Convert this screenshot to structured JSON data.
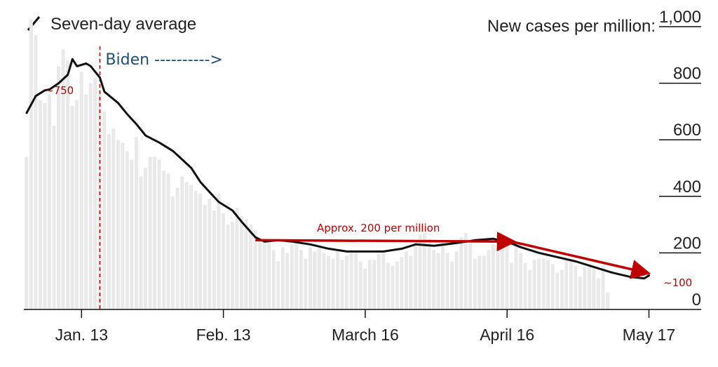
{
  "chart_data": {
    "type": "bar",
    "title": "",
    "legend_label": "Seven-day average",
    "ylabel": "New cases per million:",
    "ylim": [
      0,
      1000
    ],
    "y_ticks": [
      {
        "value": 1000,
        "label": "1,000"
      },
      {
        "value": 800,
        "label": "800"
      },
      {
        "value": 600,
        "label": "600"
      },
      {
        "value": 400,
        "label": "400"
      },
      {
        "value": 200,
        "label": "200"
      },
      {
        "value": 0,
        "label": "0"
      }
    ],
    "x_ticks": [
      {
        "day": 0,
        "label": "Jan. 13"
      },
      {
        "day": 31,
        "label": "Feb. 13"
      },
      {
        "day": 62,
        "label": "March 16"
      },
      {
        "day": 93,
        "label": "April 16"
      },
      {
        "day": 124,
        "label": "May 17"
      }
    ],
    "x_start_day": -12,
    "x_end_day": 125,
    "daily_bars": [
      540,
      1040,
      970,
      740,
      730,
      760,
      650,
      860,
      920,
      880,
      720,
      740,
      840,
      760,
      800,
      820,
      760,
      700,
      620,
      640,
      600,
      590,
      560,
      530,
      610,
      470,
      500,
      540,
      540,
      530,
      490,
      480,
      400,
      430,
      470,
      450,
      440,
      420,
      410,
      370,
      390,
      350,
      410,
      340,
      300,
      310,
      360,
      330,
      320,
      300,
      280,
      250,
      240,
      240,
      210,
      170,
      220,
      200,
      230,
      240,
      210,
      180,
      220,
      205,
      220,
      200,
      190,
      180,
      210,
      175,
      190,
      200,
      200,
      170,
      145,
      175,
      175,
      195,
      200,
      165,
      155,
      170,
      185,
      205,
      190,
      245,
      265,
      270,
      250,
      210,
      200,
      235,
      200,
      170,
      205,
      255,
      270,
      235,
      180,
      190,
      190,
      210,
      230,
      220,
      240,
      230,
      165,
      230,
      200,
      165,
      140,
      175,
      180,
      180,
      175,
      160,
      130,
      140,
      180,
      175,
      155,
      115,
      150,
      150,
      145,
      110,
      155,
      60
    ],
    "seven_day_average": [
      {
        "day": -12,
        "value": 695
      },
      {
        "day": -10,
        "value": 755
      },
      {
        "day": -8,
        "value": 775
      },
      {
        "day": -7,
        "value": 778
      },
      {
        "day": -5,
        "value": 800
      },
      {
        "day": -3,
        "value": 830
      },
      {
        "day": -2,
        "value": 885
      },
      {
        "day": -1,
        "value": 860
      },
      {
        "day": 1,
        "value": 870
      },
      {
        "day": 2,
        "value": 860
      },
      {
        "day": 4,
        "value": 820
      },
      {
        "day": 5,
        "value": 770
      },
      {
        "day": 8,
        "value": 730
      },
      {
        "day": 10,
        "value": 690
      },
      {
        "day": 12,
        "value": 655
      },
      {
        "day": 14,
        "value": 615
      },
      {
        "day": 17,
        "value": 590
      },
      {
        "day": 20,
        "value": 560
      },
      {
        "day": 22,
        "value": 530
      },
      {
        "day": 24,
        "value": 500
      },
      {
        "day": 26,
        "value": 450
      },
      {
        "day": 28,
        "value": 415
      },
      {
        "day": 30,
        "value": 380
      },
      {
        "day": 33,
        "value": 350
      },
      {
        "day": 35,
        "value": 310
      },
      {
        "day": 38,
        "value": 255
      },
      {
        "day": 40,
        "value": 240
      },
      {
        "day": 43,
        "value": 245
      },
      {
        "day": 46,
        "value": 240
      },
      {
        "day": 50,
        "value": 230
      },
      {
        "day": 54,
        "value": 215
      },
      {
        "day": 58,
        "value": 205
      },
      {
        "day": 62,
        "value": 205
      },
      {
        "day": 66,
        "value": 205
      },
      {
        "day": 70,
        "value": 215
      },
      {
        "day": 73,
        "value": 230
      },
      {
        "day": 77,
        "value": 225
      },
      {
        "day": 82,
        "value": 235
      },
      {
        "day": 86,
        "value": 245
      },
      {
        "day": 90,
        "value": 250
      },
      {
        "day": 93,
        "value": 240
      },
      {
        "day": 96,
        "value": 220
      },
      {
        "day": 100,
        "value": 200
      },
      {
        "day": 104,
        "value": 185
      },
      {
        "day": 108,
        "value": 170
      },
      {
        "day": 112,
        "value": 150
      },
      {
        "day": 116,
        "value": 130
      },
      {
        "day": 120,
        "value": 115
      },
      {
        "day": 123,
        "value": 110
      },
      {
        "day": 124,
        "value": 120
      }
    ],
    "annotations": {
      "peak_label": "~750",
      "biden_label": "Biden ---------->",
      "biden_day": 4,
      "plateau_label": "Approx. 200 per million",
      "end_label": "~100",
      "plateau_arrow": {
        "from_day": 38,
        "to_day": 94,
        "from_value": 245,
        "to_value": 240
      },
      "decline_arrow": {
        "from_day": 94,
        "to_day": 124,
        "from_value": 240,
        "to_value": 130
      }
    }
  }
}
